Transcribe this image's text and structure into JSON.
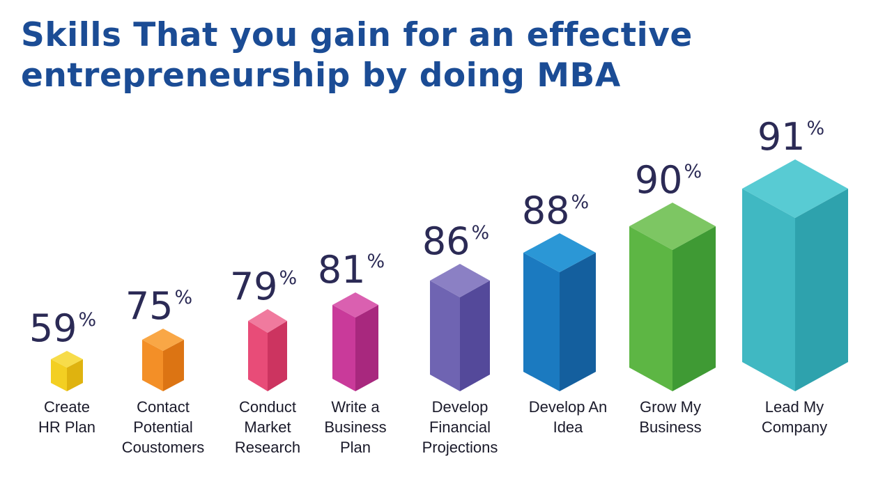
{
  "title": {
    "line1": "Skills That you gain for an effective",
    "line2": "entrepreneurship by doing MBA"
  },
  "chart_data": {
    "type": "bar",
    "title": "Skills That you gain for an effective entrepreneurship by doing MBA",
    "unit": "%",
    "categories": [
      [
        "Create",
        "HR Plan"
      ],
      [
        "Contact",
        "Potential",
        "Coustomers"
      ],
      [
        "Conduct",
        "Market",
        "Research"
      ],
      [
        "Write a",
        "Business",
        "Plan"
      ],
      [
        "Develop",
        "Financial",
        "Projections"
      ],
      [
        "Develop An",
        "Idea"
      ],
      [
        "Grow My",
        "Business"
      ],
      [
        "Lead My",
        "Company"
      ]
    ],
    "values": [
      59,
      75,
      79,
      81,
      86,
      88,
      90,
      91
    ],
    "colors": [
      {
        "top": "#f7dc4a",
        "left": "#f3cf22",
        "right": "#dfb30f"
      },
      {
        "top": "#f9a746",
        "left": "#f38f27",
        "right": "#dc7413"
      },
      {
        "top": "#f07a9e",
        "left": "#e84c78",
        "right": "#cc3460"
      },
      {
        "top": "#da60b0",
        "left": "#c93a9a",
        "right": "#a8287e"
      },
      {
        "top": "#8b80c4",
        "left": "#6f64b2",
        "right": "#54499a"
      },
      {
        "top": "#2b97d6",
        "left": "#1b7ac0",
        "right": "#145f9e"
      },
      {
        "top": "#7dc663",
        "left": "#5db644",
        "right": "#3f9a34"
      },
      {
        "top": "#58cbd3",
        "left": "#40b8c2",
        "right": "#2ea2ad"
      }
    ]
  }
}
